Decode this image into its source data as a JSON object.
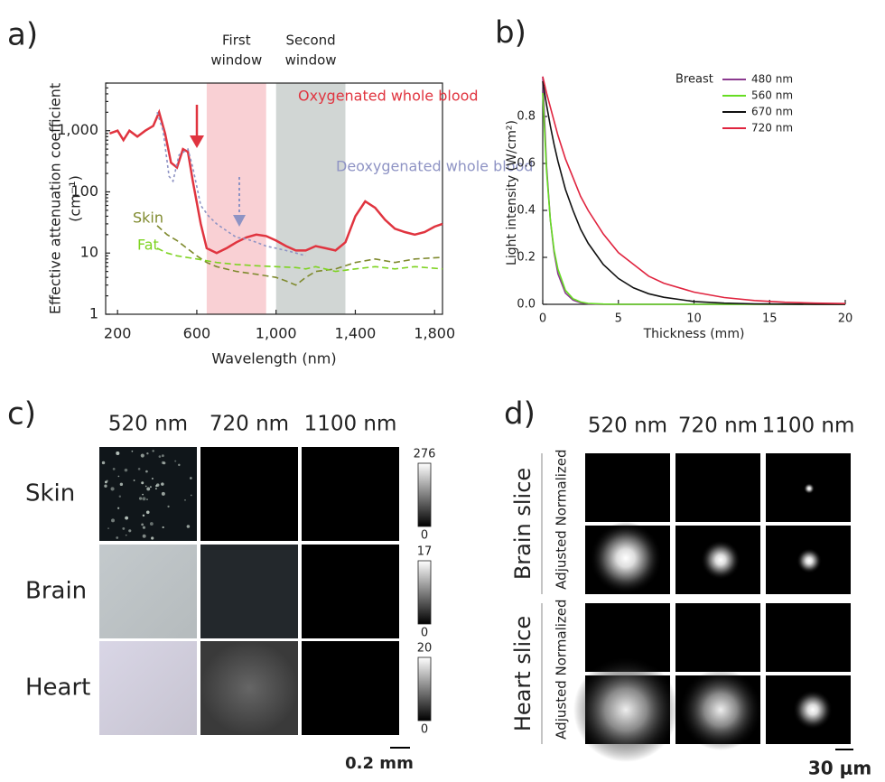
{
  "chart_data": [
    {
      "type": "line",
      "label": "a)",
      "xlabel": "Wavelength (nm)",
      "ylabel": [
        "Effective attenuation coefficient",
        "(cm⁻¹)"
      ],
      "log_y": true,
      "xlim": [
        140,
        1840
      ],
      "ylim": [
        1,
        6000
      ],
      "xticks": [
        200,
        600,
        {
          "value": 1000,
          "label": "1,000"
        },
        {
          "value": 1400,
          "label": "1,400"
        },
        {
          "value": 1800,
          "label": "1,800"
        }
      ],
      "yticks": [
        1,
        10,
        100,
        {
          "value": 1000,
          "label": "1,000"
        }
      ],
      "bands": [
        {
          "label": [
            "First",
            "window"
          ],
          "range": [
            650,
            950
          ],
          "color": "#f8c8cc"
        },
        {
          "label": [
            "Second",
            "window"
          ],
          "range": [
            1000,
            1350
          ],
          "color": "#c9cfcc"
        }
      ],
      "series": [
        {
          "name": "Oxygenated whole blood",
          "color": "#e0343f",
          "dash": "none",
          "x": [
            160,
            200,
            230,
            260,
            300,
            340,
            380,
            410,
            440,
            470,
            500,
            530,
            555,
            580,
            620,
            650,
            700,
            750,
            800,
            850,
            900,
            950,
            1000,
            1050,
            1100,
            1150,
            1200,
            1250,
            1300,
            1350,
            1400,
            1450,
            1500,
            1550,
            1600,
            1650,
            1700,
            1750,
            1800,
            1840
          ],
          "values": [
            900,
            1000,
            700,
            1000,
            800,
            1000,
            1200,
            2000,
            900,
            300,
            250,
            500,
            450,
            150,
            30,
            12,
            10,
            12,
            15,
            18,
            20,
            19,
            16,
            13,
            11,
            11,
            13,
            12,
            11,
            15,
            40,
            70,
            55,
            35,
            25,
            22,
            20,
            22,
            27,
            30
          ]
        },
        {
          "name": "Deoxygenated whole blood",
          "color": "#8e93c4",
          "dash": "3 3",
          "x": [
            400,
            430,
            460,
            480,
            510,
            555,
            580,
            620,
            660,
            700,
            760,
            800,
            850,
            900,
            950,
            1000,
            1050,
            1100,
            1150
          ],
          "values": [
            2000,
            1000,
            180,
            150,
            400,
            500,
            250,
            60,
            40,
            30,
            22,
            18,
            17,
            15,
            13,
            12,
            11,
            10,
            9
          ]
        },
        {
          "name": "Skin",
          "color": "#7f8a2e",
          "dash": "7 4",
          "x": [
            400,
            450,
            500,
            550,
            600,
            650,
            700,
            800,
            900,
            1000,
            1050,
            1100,
            1150,
            1200,
            1300,
            1400,
            1500,
            1600,
            1700,
            1840
          ],
          "values": [
            28,
            20,
            16,
            12,
            9,
            7,
            6,
            5,
            4.5,
            4,
            3.5,
            3,
            4,
            5,
            5.5,
            7,
            8,
            7,
            8,
            8.5
          ]
        },
        {
          "name": "Fat",
          "color": "#7ed321",
          "dash": "7 4",
          "x": [
            400,
            450,
            500,
            600,
            700,
            800,
            900,
            1000,
            1100,
            1150,
            1200,
            1300,
            1400,
            1500,
            1600,
            1700,
            1840
          ],
          "values": [
            12,
            10,
            9,
            8,
            7,
            6.5,
            6.2,
            6,
            5.8,
            5.5,
            6,
            5,
            5.5,
            6,
            5.5,
            6,
            5.5
          ]
        }
      ]
    },
    {
      "type": "line",
      "label": "b)",
      "xlabel": "Thickness (mm)",
      "ylabel": "Light intensity (W/cm²)",
      "legend_title": "Breast",
      "legend": "top-right",
      "xlim": [
        0,
        20
      ],
      "ylim": [
        0,
        0.95
      ],
      "xticks": [
        0,
        5,
        10,
        15,
        20
      ],
      "yticks": [
        {
          "value": 0,
          "label": "0.0"
        },
        0.2,
        0.4,
        0.6,
        0.8
      ],
      "x": [
        0,
        0.25,
        0.5,
        0.75,
        1,
        1.5,
        2,
        2.5,
        3,
        4,
        5,
        6,
        7,
        8,
        10,
        12,
        14,
        16,
        18,
        20
      ],
      "series": [
        {
          "name": "480 nm",
          "color": "#8b3a8f",
          "values": [
            0.97,
            0.59,
            0.36,
            0.22,
            0.13,
            0.048,
            0.018,
            0.007,
            0.002,
            0,
            0,
            0,
            0,
            0,
            0,
            0,
            0,
            0,
            0,
            0
          ]
        },
        {
          "name": "560 nm",
          "color": "#66dd22",
          "values": [
            0.9,
            0.57,
            0.36,
            0.23,
            0.15,
            0.06,
            0.024,
            0.01,
            0.004,
            0.001,
            0,
            0,
            0,
            0,
            0,
            0,
            0,
            0,
            0,
            0
          ]
        },
        {
          "name": "670 nm",
          "color": "#111111",
          "values": [
            0.95,
            0.85,
            0.76,
            0.68,
            0.61,
            0.49,
            0.4,
            0.32,
            0.26,
            0.17,
            0.11,
            0.07,
            0.045,
            0.03,
            0.012,
            0.005,
            0.002,
            0.001,
            0,
            0
          ]
        },
        {
          "name": "720 nm",
          "color": "#e0243f",
          "values": [
            0.97,
            0.9,
            0.84,
            0.78,
            0.72,
            0.62,
            0.54,
            0.46,
            0.4,
            0.3,
            0.22,
            0.17,
            0.12,
            0.09,
            0.052,
            0.029,
            0.016,
            0.009,
            0.005,
            0.003
          ]
        }
      ]
    }
  ],
  "image_panels": [
    {
      "label": "c)",
      "columns": [
        "520 nm",
        "720 nm",
        "1100 nm"
      ],
      "rows": [
        "Skin",
        "Brain",
        "Heart"
      ],
      "colorbars": [
        [
          276,
          0
        ],
        [
          17,
          0
        ],
        [
          20,
          0
        ]
      ],
      "scale_bar": "0.2 mm"
    },
    {
      "label": "d)",
      "columns": [
        "520 nm",
        "720 nm",
        "1100 nm"
      ],
      "groups": [
        {
          "name": "Brain slice",
          "rows": [
            "Normalized",
            "Adjusted"
          ]
        },
        {
          "name": "Heart slice",
          "rows": [
            "Normalized",
            "Adjusted"
          ]
        }
      ],
      "scale_bar": "30 μm"
    }
  ]
}
